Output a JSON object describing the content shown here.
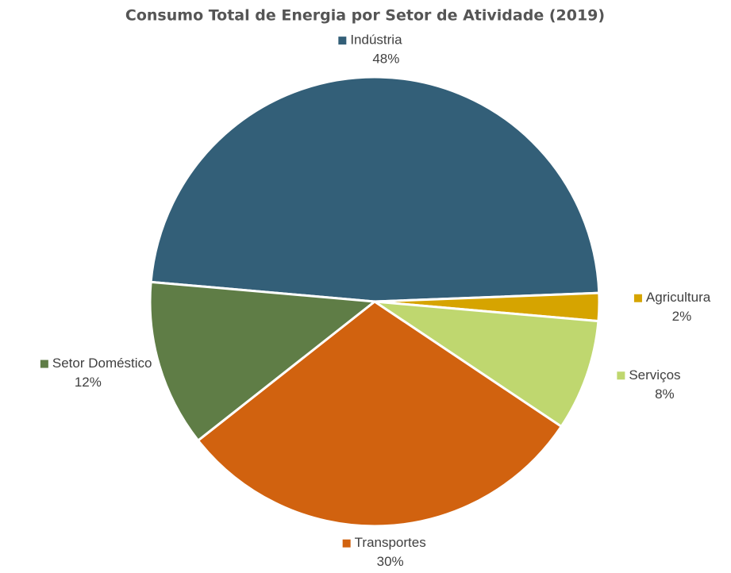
{
  "chart_data": {
    "type": "pie",
    "title": "Consumo Total de Energia por Setor de Atividade (2019)",
    "categories": [
      "Indústria",
      "Agricultura",
      "Serviços",
      "Transportes",
      "Setor Doméstico"
    ],
    "values": [
      48,
      2,
      8,
      30,
      12
    ],
    "value_labels": [
      "48%",
      "2%",
      "8%",
      "30%",
      "12%"
    ],
    "colors": [
      "#335f78",
      "#d6a400",
      "#bfd76f",
      "#d1620f",
      "#5f7d46"
    ]
  }
}
